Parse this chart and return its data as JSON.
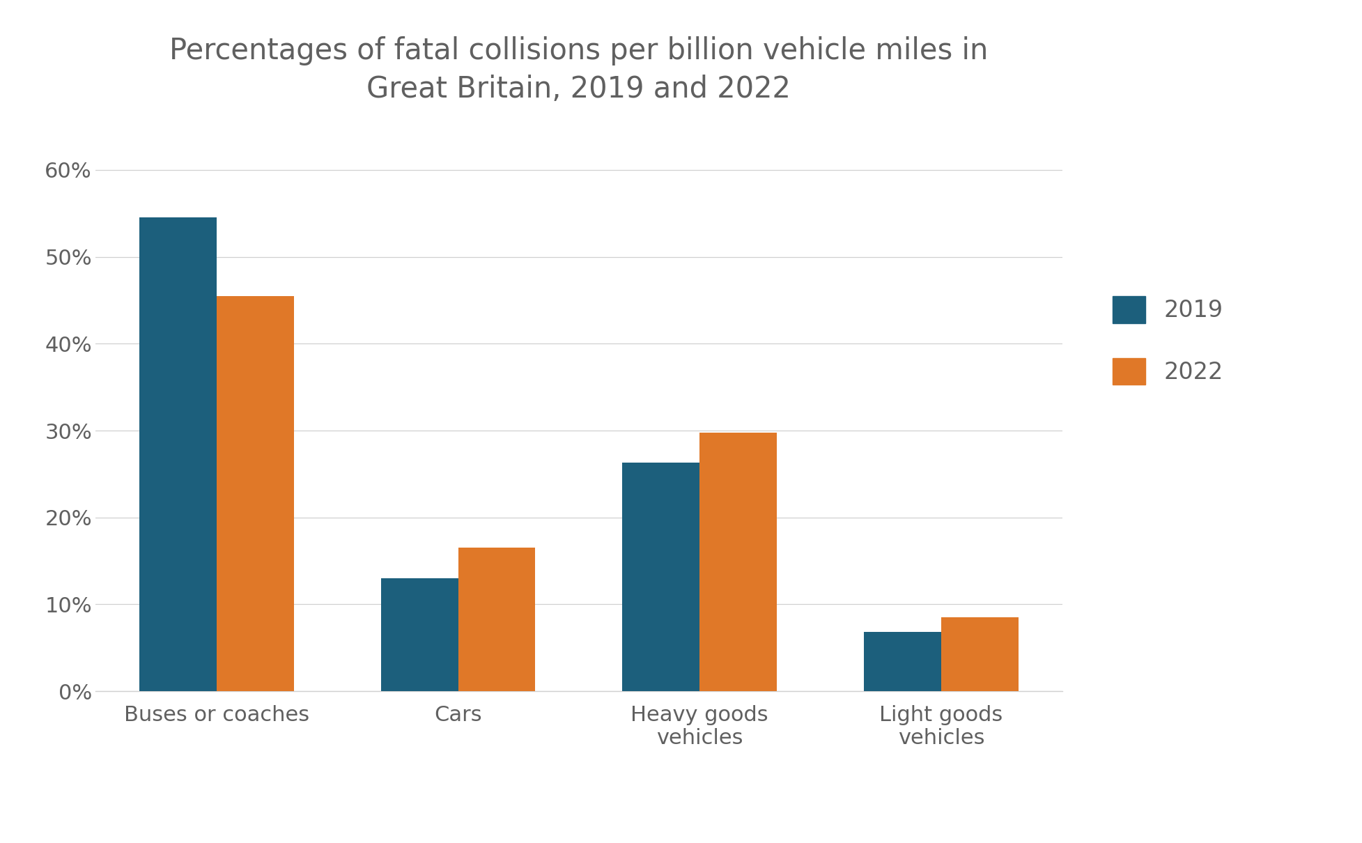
{
  "title": "Percentages of fatal collisions per billion vehicle miles in\nGreat Britain, 2019 and 2022",
  "categories": [
    "Buses or coaches",
    "Cars",
    "Heavy goods\nvehicles",
    "Light goods\nvehicles"
  ],
  "values_2019": [
    54.5,
    13.0,
    26.3,
    6.8
  ],
  "values_2022": [
    45.5,
    16.5,
    29.8,
    8.5
  ],
  "color_2019": "#1c5f7c",
  "color_2022": "#e07828",
  "legend_labels": [
    "2019",
    "2022"
  ],
  "yticks": [
    0,
    10,
    20,
    30,
    40,
    50,
    60
  ],
  "ytick_labels": [
    "0%",
    "10%",
    "20%",
    "30%",
    "40%",
    "50%",
    "60%"
  ],
  "ylim": [
    0,
    65
  ],
  "bar_width": 0.32,
  "background_color": "#ffffff",
  "title_fontsize": 30,
  "tick_fontsize": 22,
  "legend_fontsize": 24,
  "category_fontsize": 22,
  "grid_color": "#d0d0d0",
  "text_color": "#606060"
}
